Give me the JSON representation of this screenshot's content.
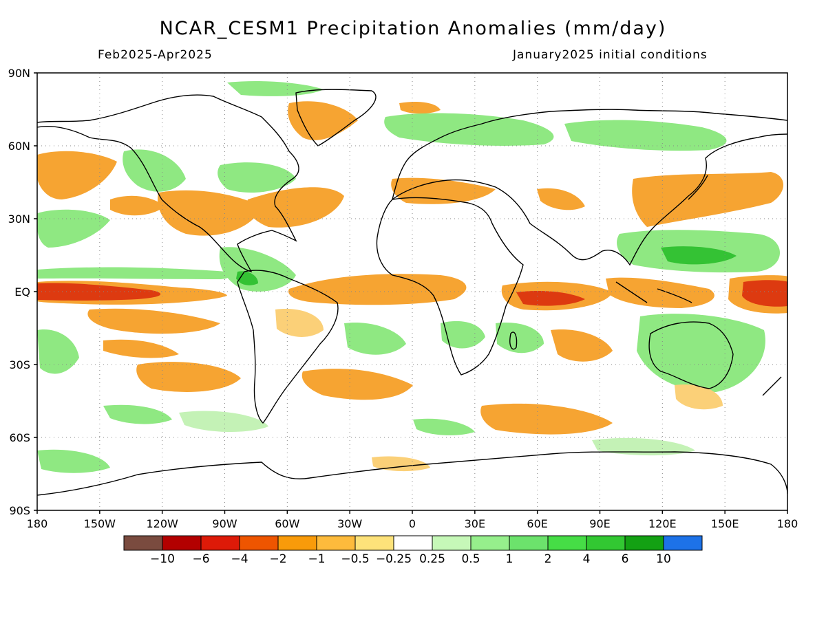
{
  "title": "NCAR_CESM1 Precipitation Anomalies (mm/day)",
  "period": "Feb2025-Apr2025",
  "init": "January2025 initial conditions",
  "axes": {
    "lat_ticks": [
      {
        "value": 90,
        "label": "90N"
      },
      {
        "value": 60,
        "label": "60N"
      },
      {
        "value": 30,
        "label": "30N"
      },
      {
        "value": 0,
        "label": "EQ"
      },
      {
        "value": -30,
        "label": "30S"
      },
      {
        "value": -60,
        "label": "60S"
      },
      {
        "value": -90,
        "label": "90S"
      }
    ],
    "lon_ticks": [
      {
        "value": 0,
        "label": "180"
      },
      {
        "value": 30,
        "label": "150W"
      },
      {
        "value": 60,
        "label": "120W"
      },
      {
        "value": 90,
        "label": "90W"
      },
      {
        "value": 120,
        "label": "60W"
      },
      {
        "value": 150,
        "label": "30W"
      },
      {
        "value": 180,
        "label": "0"
      },
      {
        "value": 210,
        "label": "30E"
      },
      {
        "value": 240,
        "label": "60E"
      },
      {
        "value": 270,
        "label": "90E"
      },
      {
        "value": 300,
        "label": "120E"
      },
      {
        "value": 330,
        "label": "150E"
      },
      {
        "value": 360,
        "label": "180"
      }
    ]
  },
  "colorbar": {
    "colors": [
      "#7a4b3f",
      "#b30000",
      "#dd1a08",
      "#ee5500",
      "#f99b0a",
      "#fdbb3c",
      "#fde27a",
      "#ffffff",
      "#c6f8b8",
      "#96ef8c",
      "#6ce26c",
      "#46dd46",
      "#32c832",
      "#13a113",
      "#1d72e8"
    ],
    "labels": [
      "−10",
      "−6",
      "−4",
      "−2",
      "−1",
      "−0.5",
      "−0.25",
      "0.25",
      "0.5",
      "1",
      "2",
      "4",
      "6",
      "10"
    ]
  },
  "anomaly_colors": {
    "strong_dry": "#dd3a10",
    "dry": "#f6a432",
    "weak_dry": "#fbd078",
    "weak_wet": "#c4f2b6",
    "wet": "#8fe882",
    "strong_wet": "#34c234"
  }
}
